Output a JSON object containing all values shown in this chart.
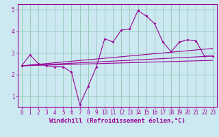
{
  "xlabel": "Windchill (Refroidissement éolien,°C)",
  "bg_color": "#cce8f0",
  "line_color": "#990099",
  "grid_color": "#99ccbb",
  "xlim": [
    -0.5,
    23.5
  ],
  "ylim": [
    0.5,
    5.25
  ],
  "yticks": [
    1,
    2,
    3,
    4,
    5
  ],
  "xticks": [
    0,
    1,
    2,
    3,
    4,
    5,
    6,
    7,
    8,
    9,
    10,
    11,
    12,
    13,
    14,
    15,
    16,
    17,
    18,
    19,
    20,
    21,
    22,
    23
  ],
  "main_x": [
    0,
    1,
    2,
    3,
    4,
    5,
    6,
    7,
    8,
    9,
    10,
    11,
    12,
    13,
    14,
    15,
    16,
    17,
    18,
    19,
    20,
    21,
    22,
    23
  ],
  "main_y": [
    2.4,
    2.9,
    2.5,
    2.4,
    2.35,
    2.35,
    2.1,
    0.6,
    1.45,
    2.35,
    3.65,
    3.5,
    4.05,
    4.1,
    4.95,
    4.7,
    4.35,
    3.5,
    3.05,
    3.5,
    3.6,
    3.55,
    2.85,
    2.85
  ],
  "trend1_x": [
    0,
    23
  ],
  "trend1_y": [
    2.4,
    3.2
  ],
  "trend2_x": [
    0,
    23
  ],
  "trend2_y": [
    2.4,
    2.85
  ],
  "trend3_x": [
    0,
    23
  ],
  "trend3_y": [
    2.4,
    2.65
  ],
  "tick_fontsize": 5.5,
  "label_fontsize": 6.5
}
